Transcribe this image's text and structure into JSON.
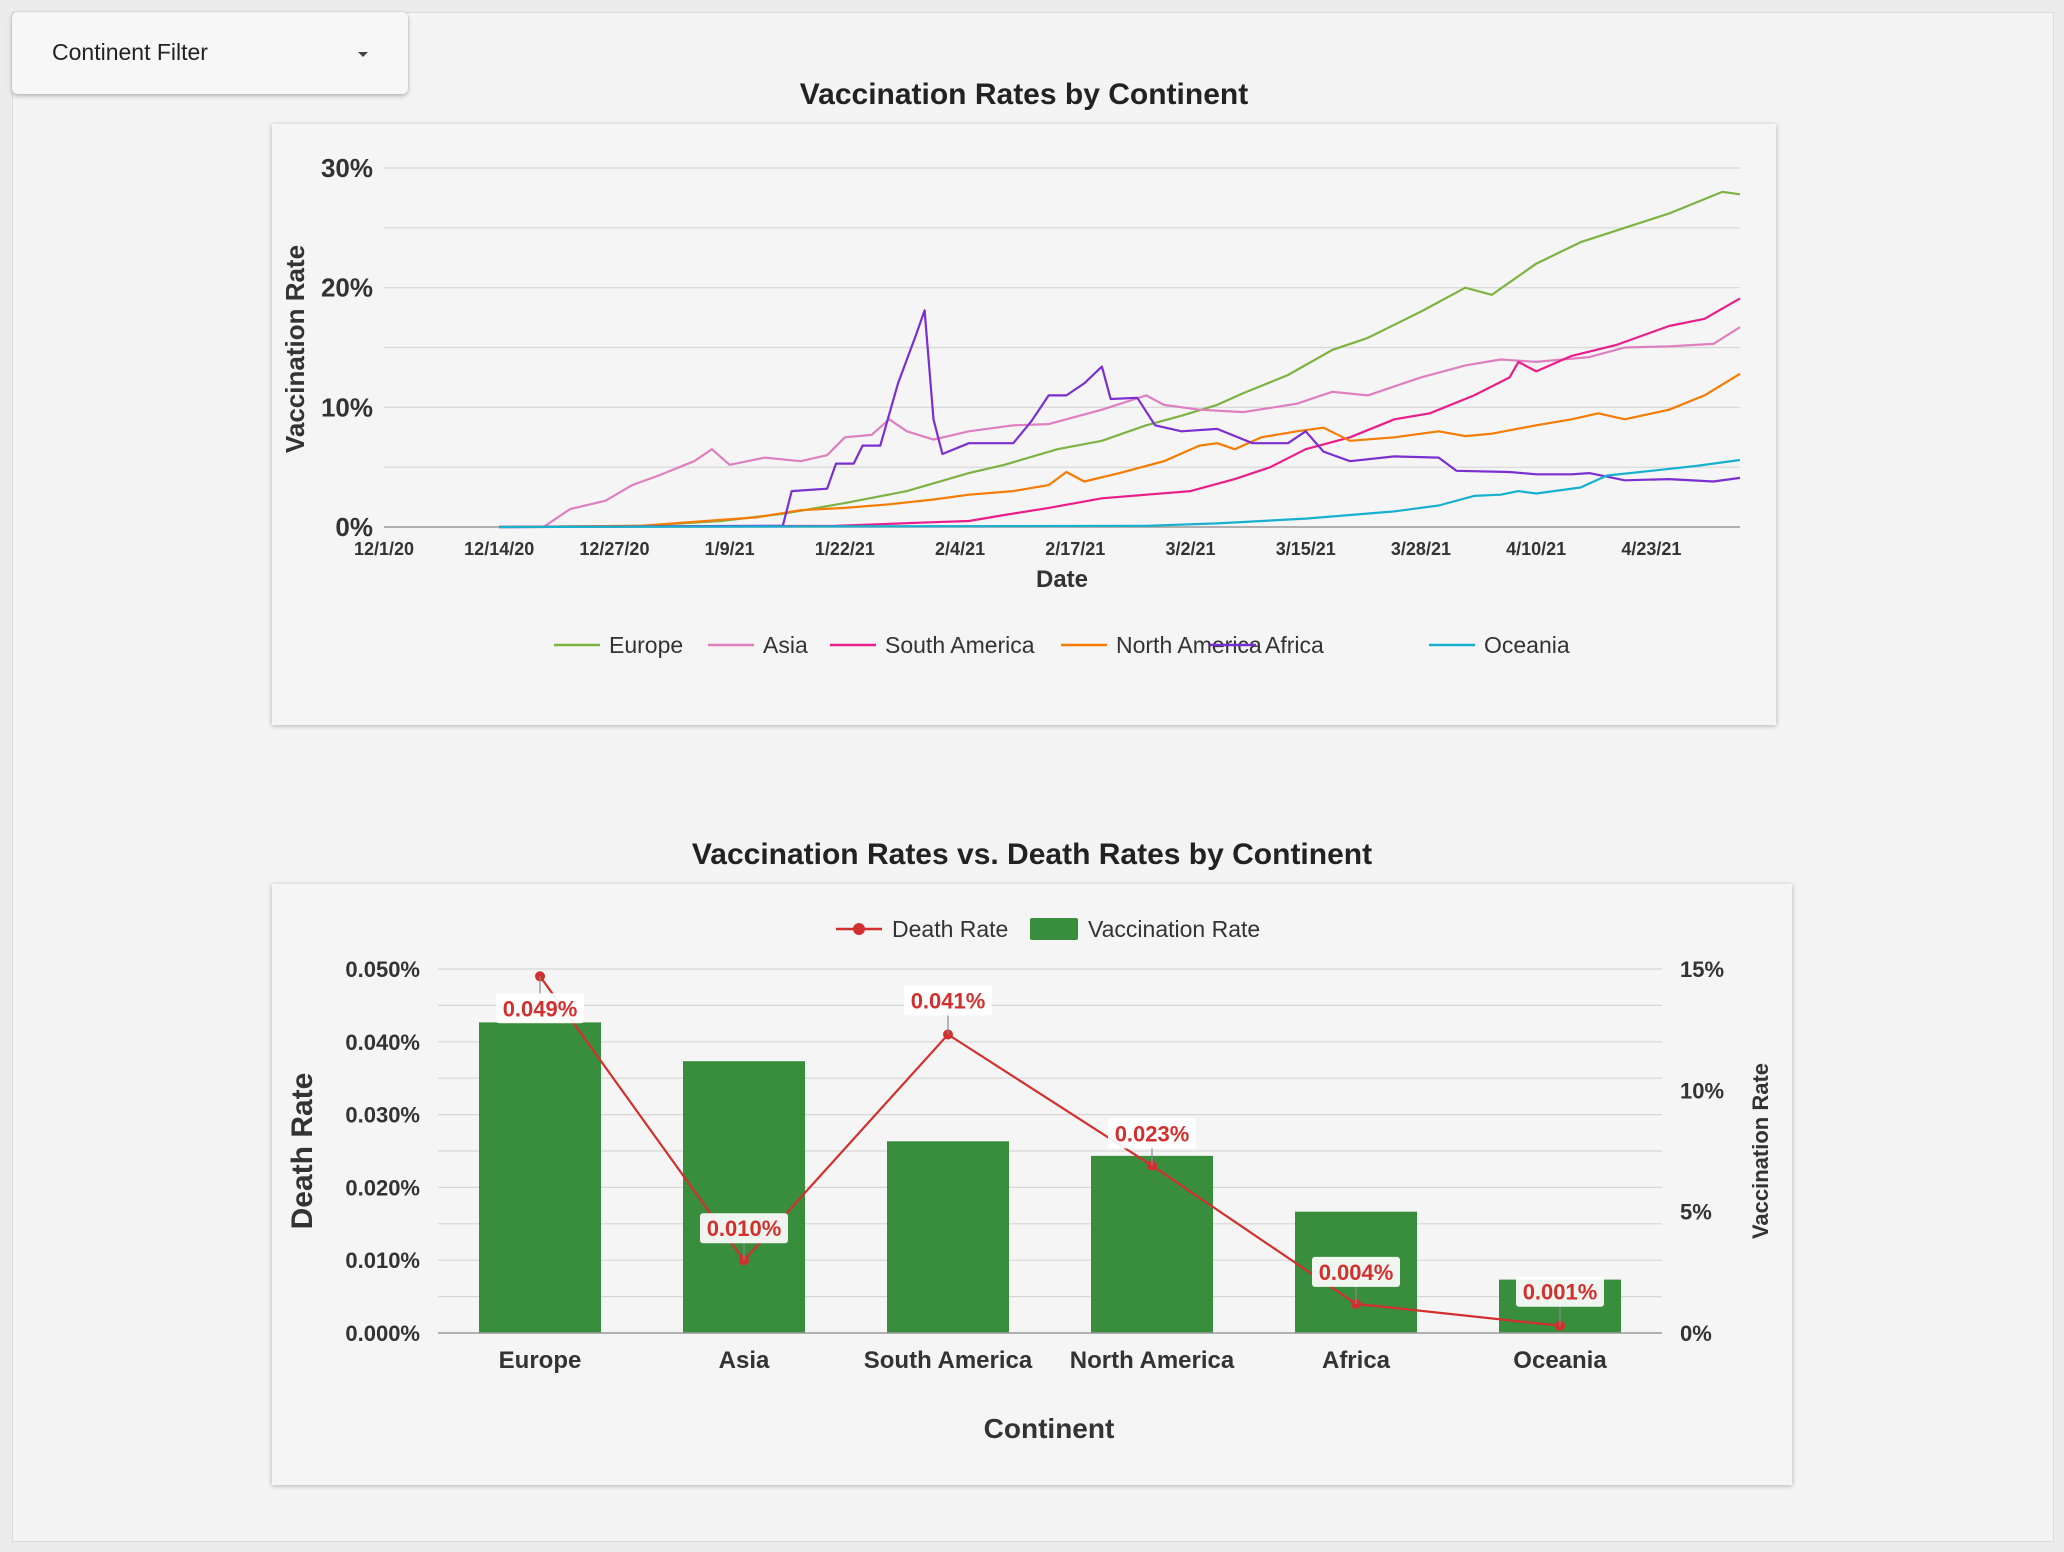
{
  "filter": {
    "label": "Continent Filter",
    "caret_icon": "caret-down-icon"
  },
  "colors": {
    "Europe": "#7cb342",
    "Asia": "#de7fbf",
    "South America": "#e91e8c",
    "North America": "#f57c00",
    "Africa": "#7b2fd0",
    "Oceania": "#17b1cf",
    "bar": "#388e3c",
    "death": "#d32f2f"
  },
  "chart_data": [
    {
      "type": "line",
      "title": "Vaccination Rates by Continent",
      "xlabel": "Date",
      "ylabel": "Vaccination Rate",
      "ylim": [
        0,
        30
      ],
      "yticks": [
        "0%",
        "10%",
        "20%",
        "30%"
      ],
      "grid": true,
      "legend_position": "bottom",
      "x_range": [
        "2020-12-01",
        "2021-05-03"
      ],
      "x_ticks": [
        {
          "date": "2020-12-01",
          "label": "12/1/20"
        },
        {
          "date": "2020-12-14",
          "label": "12/14/20"
        },
        {
          "date": "2020-12-27",
          "label": "12/27/20"
        },
        {
          "date": "2021-01-09",
          "label": "1/9/21"
        },
        {
          "date": "2021-01-22",
          "label": "1/22/21"
        },
        {
          "date": "2021-02-04",
          "label": "2/4/21"
        },
        {
          "date": "2021-02-17",
          "label": "2/17/21"
        },
        {
          "date": "2021-03-02",
          "label": "3/2/21"
        },
        {
          "date": "2021-03-15",
          "label": "3/15/21"
        },
        {
          "date": "2021-03-28",
          "label": "3/28/21"
        },
        {
          "date": "2021-04-10",
          "label": "4/10/21"
        },
        {
          "date": "2021-04-23",
          "label": "4/23/21"
        }
      ],
      "series": [
        {
          "name": "Europe",
          "points": [
            [
              "2020-12-14",
              0
            ],
            [
              "2020-12-30",
              0.1
            ],
            [
              "2021-01-08",
              0.5
            ],
            [
              "2021-01-15",
              1.1
            ],
            [
              "2021-01-22",
              2.0
            ],
            [
              "2021-01-29",
              3.0
            ],
            [
              "2021-02-05",
              4.5
            ],
            [
              "2021-02-09",
              5.2
            ],
            [
              "2021-02-15",
              6.5
            ],
            [
              "2021-02-20",
              7.2
            ],
            [
              "2021-02-25",
              8.5
            ],
            [
              "2021-03-01",
              9.3
            ],
            [
              "2021-03-05",
              10.2
            ],
            [
              "2021-03-08",
              11.2
            ],
            [
              "2021-03-13",
              12.7
            ],
            [
              "2021-03-18",
              14.8
            ],
            [
              "2021-03-22",
              15.8
            ],
            [
              "2021-03-28",
              18.0
            ],
            [
              "2021-04-02",
              20.0
            ],
            [
              "2021-04-05",
              19.4
            ],
            [
              "2021-04-10",
              22.0
            ],
            [
              "2021-04-15",
              23.8
            ],
            [
              "2021-04-20",
              25.0
            ],
            [
              "2021-04-25",
              26.2
            ],
            [
              "2021-05-01",
              28.0
            ],
            [
              "2021-05-03",
              27.8
            ]
          ]
        },
        {
          "name": "Asia",
          "points": [
            [
              "2020-12-14",
              0
            ],
            [
              "2020-12-19",
              0
            ],
            [
              "2020-12-22",
              1.5
            ],
            [
              "2020-12-26",
              2.2
            ],
            [
              "2020-12-29",
              3.5
            ],
            [
              "2021-01-01",
              4.3
            ],
            [
              "2021-01-05",
              5.5
            ],
            [
              "2021-01-07",
              6.5
            ],
            [
              "2021-01-09",
              5.2
            ],
            [
              "2021-01-13",
              5.8
            ],
            [
              "2021-01-17",
              5.5
            ],
            [
              "2021-01-20",
              6.0
            ],
            [
              "2021-01-22",
              7.5
            ],
            [
              "2021-01-25",
              7.7
            ],
            [
              "2021-01-27",
              9.0
            ],
            [
              "2021-01-29",
              8.0
            ],
            [
              "2021-02-01",
              7.3
            ],
            [
              "2021-02-05",
              8.0
            ],
            [
              "2021-02-10",
              8.5
            ],
            [
              "2021-02-14",
              8.6
            ],
            [
              "2021-02-20",
              9.8
            ],
            [
              "2021-02-25",
              11.0
            ],
            [
              "2021-02-27",
              10.2
            ],
            [
              "2021-03-03",
              9.8
            ],
            [
              "2021-03-08",
              9.6
            ],
            [
              "2021-03-14",
              10.3
            ],
            [
              "2021-03-18",
              11.3
            ],
            [
              "2021-03-22",
              11.0
            ],
            [
              "2021-03-28",
              12.5
            ],
            [
              "2021-04-02",
              13.5
            ],
            [
              "2021-04-06",
              14.0
            ],
            [
              "2021-04-10",
              13.8
            ],
            [
              "2021-04-16",
              14.2
            ],
            [
              "2021-04-20",
              15.0
            ],
            [
              "2021-04-25",
              15.1
            ],
            [
              "2021-04-30",
              15.3
            ],
            [
              "2021-05-03",
              16.7
            ]
          ]
        },
        {
          "name": "South America",
          "points": [
            [
              "2020-12-14",
              0
            ],
            [
              "2021-01-21",
              0.1
            ],
            [
              "2021-02-01",
              0.4
            ],
            [
              "2021-02-05",
              0.5
            ],
            [
              "2021-02-09",
              1.0
            ],
            [
              "2021-02-14",
              1.6
            ],
            [
              "2021-02-20",
              2.4
            ],
            [
              "2021-02-25",
              2.7
            ],
            [
              "2021-03-02",
              3.0
            ],
            [
              "2021-03-07",
              4.0
            ],
            [
              "2021-03-11",
              5.0
            ],
            [
              "2021-03-15",
              6.5
            ],
            [
              "2021-03-20",
              7.5
            ],
            [
              "2021-03-25",
              9.0
            ],
            [
              "2021-03-29",
              9.5
            ],
            [
              "2021-04-03",
              11.0
            ],
            [
              "2021-04-07",
              12.5
            ],
            [
              "2021-04-08",
              13.8
            ],
            [
              "2021-04-10",
              13.0
            ],
            [
              "2021-04-14",
              14.3
            ],
            [
              "2021-04-19",
              15.2
            ],
            [
              "2021-04-25",
              16.8
            ],
            [
              "2021-04-29",
              17.4
            ],
            [
              "2021-05-03",
              19.1
            ]
          ]
        },
        {
          "name": "North America",
          "points": [
            [
              "2020-12-14",
              0
            ],
            [
              "2020-12-30",
              0.1
            ],
            [
              "2021-01-08",
              0.6
            ],
            [
              "2021-01-12",
              0.8
            ],
            [
              "2021-01-17",
              1.4
            ],
            [
              "2021-01-22",
              1.6
            ],
            [
              "2021-01-27",
              1.9
            ],
            [
              "2021-02-01",
              2.3
            ],
            [
              "2021-02-05",
              2.7
            ],
            [
              "2021-02-10",
              3.0
            ],
            [
              "2021-02-14",
              3.5
            ],
            [
              "2021-02-16",
              4.6
            ],
            [
              "2021-02-18",
              3.8
            ],
            [
              "2021-02-22",
              4.5
            ],
            [
              "2021-02-27",
              5.5
            ],
            [
              "2021-03-03",
              6.8
            ],
            [
              "2021-03-05",
              7.0
            ],
            [
              "2021-03-07",
              6.5
            ],
            [
              "2021-03-10",
              7.5
            ],
            [
              "2021-03-14",
              8.0
            ],
            [
              "2021-03-17",
              8.3
            ],
            [
              "2021-03-20",
              7.2
            ],
            [
              "2021-03-25",
              7.5
            ],
            [
              "2021-03-30",
              8.0
            ],
            [
              "2021-04-02",
              7.6
            ],
            [
              "2021-04-05",
              7.8
            ],
            [
              "2021-04-10",
              8.5
            ],
            [
              "2021-04-14",
              9.0
            ],
            [
              "2021-04-17",
              9.5
            ],
            [
              "2021-04-20",
              9.0
            ],
            [
              "2021-04-25",
              9.8
            ],
            [
              "2021-04-29",
              11.0
            ],
            [
              "2021-05-03",
              12.8
            ]
          ]
        },
        {
          "name": "Africa",
          "points": [
            [
              "2020-12-14",
              0
            ],
            [
              "2021-01-15",
              0.1
            ],
            [
              "2021-01-16",
              3.0
            ],
            [
              "2021-01-20",
              3.2
            ],
            [
              "2021-01-21",
              5.3
            ],
            [
              "2021-01-23",
              5.3
            ],
            [
              "2021-01-24",
              6.8
            ],
            [
              "2021-01-26",
              6.8
            ],
            [
              "2021-01-28",
              12.0
            ],
            [
              "2021-01-30",
              16.0
            ],
            [
              "2021-01-31",
              18.1
            ],
            [
              "2021-02-01",
              9.0
            ],
            [
              "2021-02-02",
              6.1
            ],
            [
              "2021-02-05",
              7.0
            ],
            [
              "2021-02-10",
              7.0
            ],
            [
              "2021-02-12",
              8.8
            ],
            [
              "2021-02-14",
              11.0
            ],
            [
              "2021-02-16",
              11.0
            ],
            [
              "2021-02-18",
              12.0
            ],
            [
              "2021-02-20",
              13.4
            ],
            [
              "2021-02-21",
              10.7
            ],
            [
              "2021-02-24",
              10.8
            ],
            [
              "2021-02-26",
              8.5
            ],
            [
              "2021-03-01",
              8.0
            ],
            [
              "2021-03-05",
              8.2
            ],
            [
              "2021-03-09",
              7.0
            ],
            [
              "2021-03-13",
              7.0
            ],
            [
              "2021-03-15",
              8.0
            ],
            [
              "2021-03-17",
              6.3
            ],
            [
              "2021-03-20",
              5.5
            ],
            [
              "2021-03-25",
              5.9
            ],
            [
              "2021-03-30",
              5.8
            ],
            [
              "2021-04-01",
              4.7
            ],
            [
              "2021-04-07",
              4.6
            ],
            [
              "2021-04-10",
              4.4
            ],
            [
              "2021-04-14",
              4.4
            ],
            [
              "2021-04-16",
              4.5
            ],
            [
              "2021-04-20",
              3.9
            ],
            [
              "2021-04-25",
              4.0
            ],
            [
              "2021-04-30",
              3.8
            ],
            [
              "2021-05-03",
              4.1
            ]
          ]
        },
        {
          "name": "Oceania",
          "points": [
            [
              "2020-12-14",
              0
            ],
            [
              "2021-02-25",
              0.1
            ],
            [
              "2021-03-05",
              0.3
            ],
            [
              "2021-03-15",
              0.7
            ],
            [
              "2021-03-25",
              1.3
            ],
            [
              "2021-03-30",
              1.8
            ],
            [
              "2021-04-03",
              2.6
            ],
            [
              "2021-04-06",
              2.7
            ],
            [
              "2021-04-08",
              3.0
            ],
            [
              "2021-04-10",
              2.8
            ],
            [
              "2021-04-15",
              3.3
            ],
            [
              "2021-04-18",
              4.3
            ],
            [
              "2021-04-23",
              4.7
            ],
            [
              "2021-04-28",
              5.1
            ],
            [
              "2021-05-03",
              5.6
            ]
          ]
        }
      ]
    },
    {
      "type": "bar",
      "title": "Vaccination Rates vs. Death Rates by Continent",
      "xlabel": "Continent",
      "ylabel_left": "Death Rate",
      "ylabel_right": "Vaccination Rate",
      "categories": [
        "Europe",
        "Asia",
        "South America",
        "North America",
        "Africa",
        "Oceania"
      ],
      "ylim_left": [
        0,
        0.05
      ],
      "ylim_right": [
        0,
        15
      ],
      "left_ticks": [
        "0.000%",
        "0.010%",
        "0.020%",
        "0.030%",
        "0.040%",
        "0.050%"
      ],
      "right_ticks": [
        "0%",
        "5%",
        "10%",
        "15%"
      ],
      "legend_position": "top",
      "series": [
        {
          "name": "Death Rate",
          "type": "line",
          "axis": "left",
          "values": [
            0.049,
            0.01,
            0.041,
            0.023,
            0.004,
            0.001
          ],
          "labels": [
            "0.049%",
            "0.010%",
            "0.041%",
            "0.023%",
            "0.004%",
            "0.001%"
          ]
        },
        {
          "name": "Vaccination Rate",
          "type": "bar",
          "axis": "right",
          "values": [
            12.8,
            11.2,
            7.9,
            7.3,
            5.0,
            2.2
          ]
        }
      ]
    }
  ]
}
